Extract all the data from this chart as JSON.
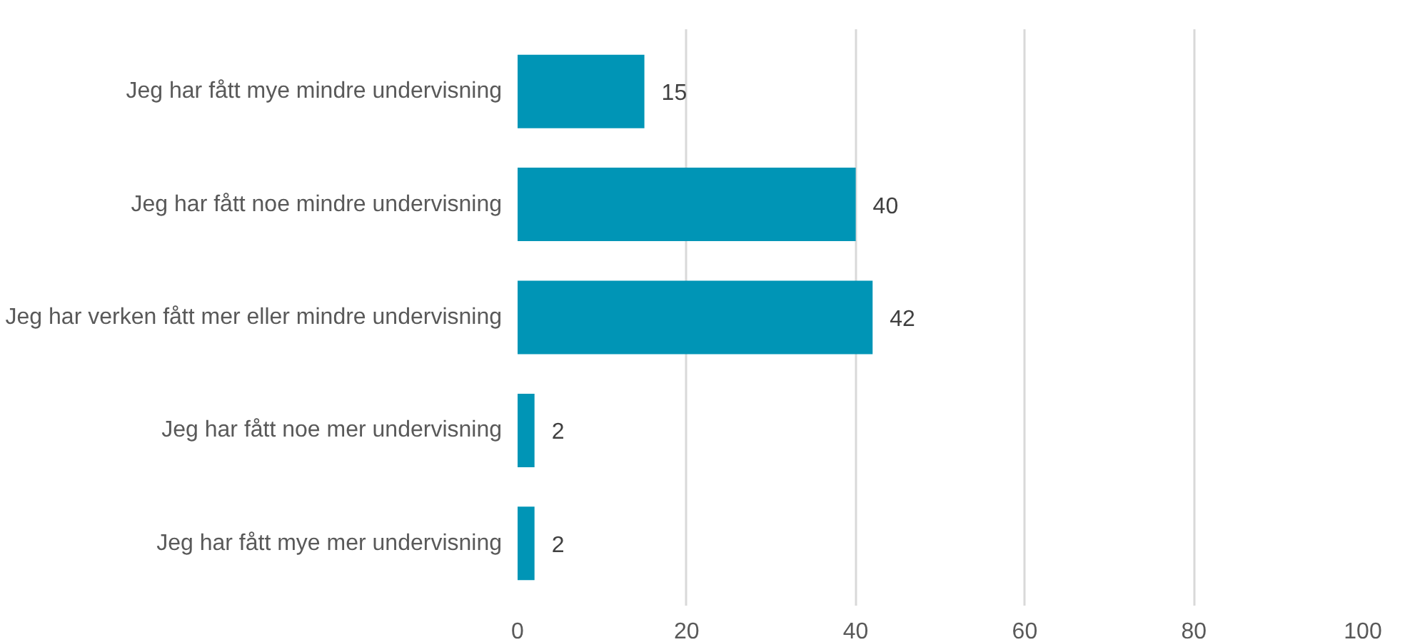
{
  "chart_data": {
    "type": "bar",
    "orientation": "horizontal",
    "categories": [
      "Jeg har fått mye mindre undervisning",
      "Jeg har fått noe mindre undervisning",
      "Jeg har verken fått mer eller mindre undervisning",
      "Jeg har fått noe mer undervisning",
      "Jeg har fått mye mer undervisning"
    ],
    "values": [
      15,
      40,
      42,
      2,
      2
    ],
    "color": "#0095b6",
    "xlim": [
      0,
      100
    ],
    "xticks": [
      0,
      20,
      40,
      60,
      80,
      100
    ],
    "grid": "x",
    "data_labels": true
  }
}
